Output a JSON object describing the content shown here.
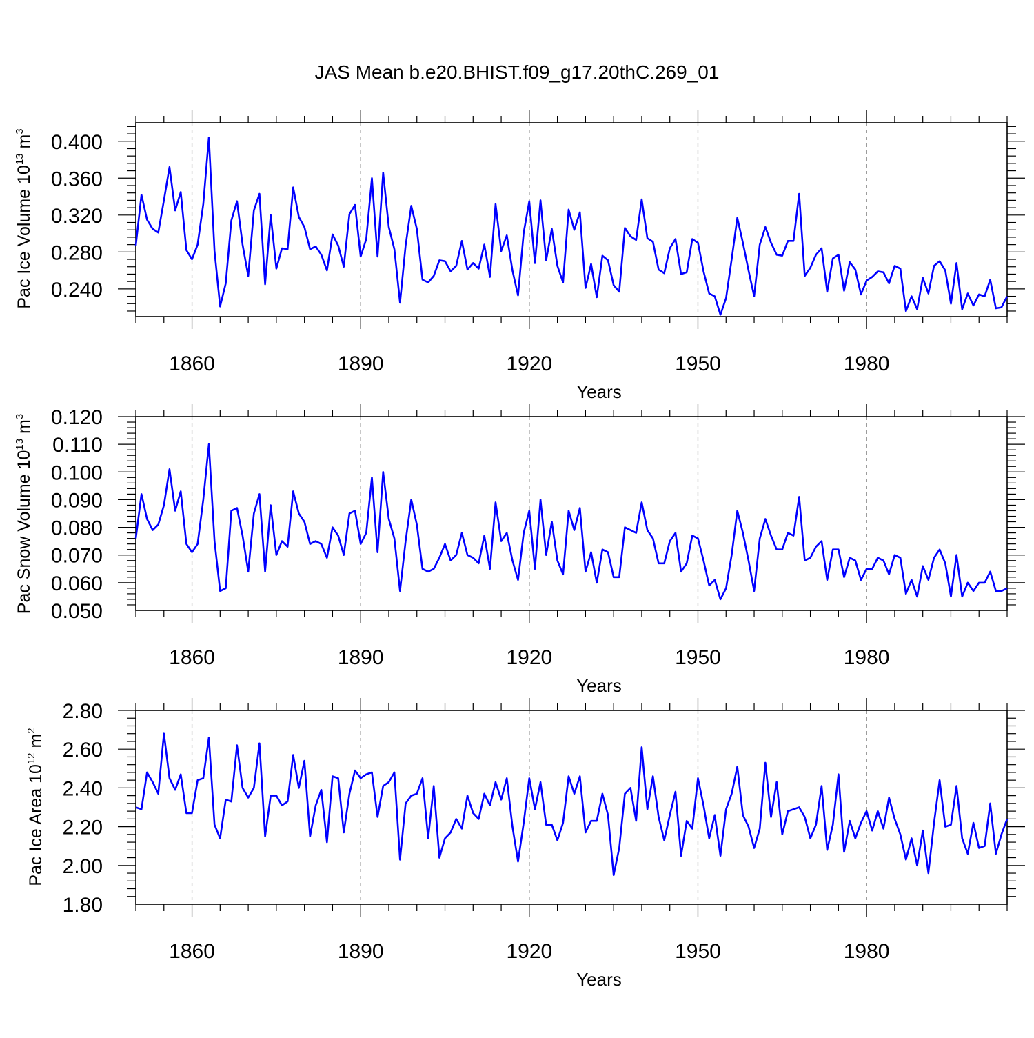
{
  "title": "JAS Mean b.e20.BHIST.f09_g17.20thC.269_01",
  "chart_data": [
    {
      "type": "line",
      "title": "JAS Mean b.e20.BHIST.f09_g17.20thC.269_01",
      "xlabel": "Years",
      "ylabel": "Pac Ice Volume 10",
      "ylabel_exp": "13",
      "ylabel_unit": " m",
      "ylabel_unit_exp": "3",
      "xlim": [
        1850,
        2005
      ],
      "ylim": [
        0.21,
        0.42
      ],
      "xticks": [
        1860,
        1890,
        1920,
        1950,
        1980
      ],
      "xtick_labels": [
        "1860",
        "1890",
        "1920",
        "1950",
        "1980"
      ],
      "yticks": [
        0.24,
        0.28,
        0.32,
        0.36,
        0.4
      ],
      "ytick_labels": [
        "0.240",
        "0.280",
        "0.320",
        "0.360",
        "0.400"
      ],
      "grid": "vertical dashed at major x ticks",
      "line_color": "#0000ff",
      "x_start": 1850,
      "values": [
        0.287,
        0.342,
        0.315,
        0.305,
        0.301,
        0.336,
        0.372,
        0.325,
        0.345,
        0.282,
        0.272,
        0.288,
        0.332,
        0.404,
        0.281,
        0.221,
        0.246,
        0.314,
        0.335,
        0.288,
        0.254,
        0.325,
        0.343,
        0.245,
        0.32,
        0.262,
        0.284,
        0.283,
        0.35,
        0.318,
        0.307,
        0.283,
        0.286,
        0.277,
        0.26,
        0.299,
        0.287,
        0.264,
        0.321,
        0.331,
        0.275,
        0.294,
        0.36,
        0.275,
        0.366,
        0.307,
        0.283,
        0.225,
        0.287,
        0.33,
        0.305,
        0.25,
        0.247,
        0.254,
        0.271,
        0.27,
        0.259,
        0.265,
        0.292,
        0.261,
        0.268,
        0.262,
        0.288,
        0.253,
        0.332,
        0.281,
        0.298,
        0.26,
        0.233,
        0.301,
        0.335,
        0.268,
        0.336,
        0.271,
        0.305,
        0.265,
        0.247,
        0.326,
        0.304,
        0.323,
        0.241,
        0.267,
        0.231,
        0.276,
        0.271,
        0.244,
        0.237,
        0.306,
        0.297,
        0.293,
        0.337,
        0.295,
        0.291,
        0.261,
        0.257,
        0.284,
        0.294,
        0.256,
        0.258,
        0.294,
        0.29,
        0.259,
        0.235,
        0.232,
        0.212,
        0.23,
        0.272,
        0.317,
        0.29,
        0.26,
        0.232,
        0.288,
        0.307,
        0.29,
        0.277,
        0.276,
        0.292,
        0.292,
        0.343,
        0.254,
        0.263,
        0.277,
        0.284,
        0.237,
        0.273,
        0.277,
        0.238,
        0.269,
        0.261,
        0.234,
        0.249,
        0.253,
        0.259,
        0.258,
        0.246,
        0.265,
        0.262,
        0.216,
        0.232,
        0.218,
        0.252,
        0.235,
        0.265,
        0.27,
        0.26,
        0.224,
        0.268,
        0.218,
        0.235,
        0.222,
        0.234,
        0.232,
        0.25,
        0.219,
        0.22,
        0.232
      ]
    },
    {
      "type": "line",
      "xlabel": "Years",
      "ylabel": "Pac Snow Volume 10",
      "ylabel_exp": "13",
      "ylabel_unit": " m",
      "ylabel_unit_exp": "3",
      "xlim": [
        1850,
        2005
      ],
      "ylim": [
        0.05,
        0.12
      ],
      "xticks": [
        1860,
        1890,
        1920,
        1950,
        1980
      ],
      "xtick_labels": [
        "1860",
        "1890",
        "1920",
        "1950",
        "1980"
      ],
      "yticks": [
        0.05,
        0.06,
        0.07,
        0.08,
        0.09,
        0.1,
        0.11,
        0.12
      ],
      "ytick_labels": [
        "0.050",
        "0.060",
        "0.070",
        "0.080",
        "0.090",
        "0.100",
        "0.110",
        "0.120"
      ],
      "grid": "vertical dashed at major x ticks",
      "line_color": "#0000ff",
      "x_start": 1850,
      "values": [
        0.076,
        0.092,
        0.083,
        0.079,
        0.081,
        0.088,
        0.101,
        0.086,
        0.093,
        0.074,
        0.071,
        0.074,
        0.09,
        0.11,
        0.075,
        0.057,
        0.058,
        0.086,
        0.087,
        0.077,
        0.064,
        0.085,
        0.092,
        0.064,
        0.088,
        0.07,
        0.075,
        0.073,
        0.093,
        0.085,
        0.082,
        0.074,
        0.075,
        0.074,
        0.069,
        0.08,
        0.077,
        0.07,
        0.085,
        0.086,
        0.074,
        0.078,
        0.098,
        0.071,
        0.1,
        0.083,
        0.076,
        0.057,
        0.075,
        0.09,
        0.081,
        0.065,
        0.064,
        0.065,
        0.069,
        0.074,
        0.068,
        0.07,
        0.078,
        0.07,
        0.069,
        0.067,
        0.077,
        0.065,
        0.089,
        0.075,
        0.078,
        0.068,
        0.061,
        0.078,
        0.086,
        0.065,
        0.09,
        0.07,
        0.082,
        0.068,
        0.063,
        0.086,
        0.079,
        0.087,
        0.064,
        0.071,
        0.06,
        0.072,
        0.071,
        0.062,
        0.062,
        0.08,
        0.079,
        0.078,
        0.089,
        0.079,
        0.076,
        0.067,
        0.067,
        0.075,
        0.078,
        0.064,
        0.067,
        0.077,
        0.076,
        0.068,
        0.059,
        0.061,
        0.054,
        0.058,
        0.07,
        0.086,
        0.078,
        0.068,
        0.057,
        0.076,
        0.083,
        0.077,
        0.072,
        0.072,
        0.078,
        0.077,
        0.091,
        0.068,
        0.069,
        0.073,
        0.075,
        0.061,
        0.072,
        0.072,
        0.062,
        0.069,
        0.068,
        0.061,
        0.065,
        0.065,
        0.069,
        0.068,
        0.063,
        0.07,
        0.069,
        0.056,
        0.061,
        0.055,
        0.066,
        0.061,
        0.069,
        0.072,
        0.067,
        0.055,
        0.07,
        0.055,
        0.06,
        0.057,
        0.06,
        0.06,
        0.064,
        0.057,
        0.057,
        0.058
      ]
    },
    {
      "type": "line",
      "xlabel": "Years",
      "ylabel": "Pac Ice Area 10",
      "ylabel_exp": "12",
      "ylabel_unit": " m",
      "ylabel_unit_exp": "2",
      "xlim": [
        1850,
        2005
      ],
      "ylim": [
        1.8,
        2.8
      ],
      "xticks": [
        1860,
        1890,
        1920,
        1950,
        1980
      ],
      "xtick_labels": [
        "1860",
        "1890",
        "1920",
        "1950",
        "1980"
      ],
      "yticks": [
        1.8,
        2.0,
        2.2,
        2.4,
        2.6,
        2.8
      ],
      "ytick_labels": [
        "1.80",
        "2.00",
        "2.20",
        "2.40",
        "2.60",
        "2.80"
      ],
      "grid": "vertical dashed at major x ticks",
      "line_color": "#0000ff",
      "x_start": 1850,
      "values": [
        2.3,
        2.29,
        2.48,
        2.43,
        2.37,
        2.68,
        2.45,
        2.39,
        2.47,
        2.27,
        2.27,
        2.44,
        2.45,
        2.66,
        2.21,
        2.14,
        2.34,
        2.33,
        2.62,
        2.4,
        2.35,
        2.4,
        2.63,
        2.15,
        2.36,
        2.36,
        2.31,
        2.33,
        2.57,
        2.4,
        2.54,
        2.15,
        2.31,
        2.39,
        2.12,
        2.46,
        2.45,
        2.17,
        2.37,
        2.49,
        2.45,
        2.47,
        2.48,
        2.25,
        2.41,
        2.43,
        2.48,
        2.03,
        2.32,
        2.36,
        2.37,
        2.45,
        2.14,
        2.41,
        2.04,
        2.14,
        2.17,
        2.24,
        2.19,
        2.36,
        2.27,
        2.24,
        2.37,
        2.31,
        2.43,
        2.34,
        2.45,
        2.2,
        2.02,
        2.22,
        2.45,
        2.29,
        2.43,
        2.21,
        2.21,
        2.13,
        2.22,
        2.46,
        2.37,
        2.46,
        2.17,
        2.23,
        2.23,
        2.37,
        2.26,
        1.95,
        2.09,
        2.37,
        2.4,
        2.23,
        2.61,
        2.29,
        2.46,
        2.25,
        2.13,
        2.26,
        2.38,
        2.05,
        2.23,
        2.19,
        2.45,
        2.31,
        2.14,
        2.26,
        2.05,
        2.29,
        2.37,
        2.51,
        2.26,
        2.2,
        2.09,
        2.19,
        2.53,
        2.25,
        2.43,
        2.16,
        2.28,
        2.29,
        2.3,
        2.25,
        2.14,
        2.21,
        2.41,
        2.08,
        2.21,
        2.47,
        2.07,
        2.23,
        2.14,
        2.22,
        2.28,
        2.18,
        2.28,
        2.19,
        2.35,
        2.24,
        2.16,
        2.03,
        2.14,
        2.0,
        2.18,
        1.96,
        2.22,
        2.44,
        2.2,
        2.21,
        2.41,
        2.14,
        2.06,
        2.22,
        2.09,
        2.1,
        2.32,
        2.06,
        2.16,
        2.24
      ]
    }
  ]
}
